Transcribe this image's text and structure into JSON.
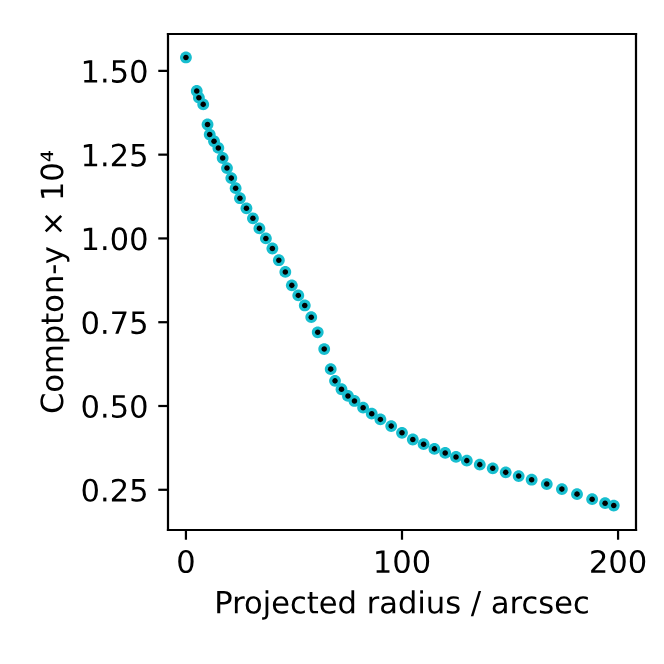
{
  "chart_data": {
    "type": "scatter",
    "xlabel": "Projected radius / arcsec",
    "ylabel": "Compton-y × 10⁴",
    "x": [
      0,
      5,
      6,
      8,
      10,
      11,
      13,
      15,
      17,
      19,
      21,
      23,
      25,
      28,
      31,
      34,
      37,
      40,
      43,
      46,
      49,
      52,
      55,
      58,
      61,
      64,
      67,
      69,
      72,
      75,
      78,
      82,
      86,
      90,
      95,
      100,
      105,
      110,
      115,
      120,
      125,
      130,
      136,
      142,
      148,
      154,
      160,
      167,
      174,
      181,
      188,
      194,
      198
    ],
    "series": [
      {
        "color": "#17becf",
        "marker": "circle",
        "values": [
          1.54,
          1.44,
          1.42,
          1.4,
          1.34,
          1.31,
          1.29,
          1.27,
          1.24,
          1.21,
          1.18,
          1.15,
          1.12,
          1.09,
          1.06,
          1.03,
          1.0,
          0.97,
          0.935,
          0.9,
          0.86,
          0.83,
          0.8,
          0.765,
          0.72,
          0.67,
          0.61,
          0.575,
          0.55,
          0.53,
          0.515,
          0.495,
          0.477,
          0.46,
          0.44,
          0.42,
          0.4,
          0.386,
          0.372,
          0.36,
          0.348,
          0.337,
          0.325,
          0.314,
          0.302,
          0.291,
          0.28,
          0.267,
          0.252,
          0.237,
          0.222,
          0.21,
          0.203
        ]
      },
      {
        "color": "#000000",
        "marker": "circle",
        "values": [
          1.54,
          1.44,
          1.42,
          1.4,
          1.34,
          1.31,
          1.29,
          1.27,
          1.24,
          1.21,
          1.18,
          1.15,
          1.12,
          1.09,
          1.06,
          1.03,
          1.0,
          0.97,
          0.935,
          0.9,
          0.86,
          0.83,
          0.8,
          0.765,
          0.72,
          0.67,
          0.61,
          0.575,
          0.55,
          0.53,
          0.515,
          0.495,
          0.477,
          0.46,
          0.44,
          0.42,
          0.4,
          0.386,
          0.372,
          0.36,
          0.348,
          0.337,
          0.325,
          0.314,
          0.302,
          0.291,
          0.28,
          0.267,
          0.252,
          0.237,
          0.222,
          0.21,
          0.203
        ]
      }
    ],
    "xlim": [
      -8.3,
      208.3
    ],
    "xticks": [
      0,
      100,
      200
    ],
    "ylim": [
      0.13,
      1.61
    ],
    "yticks": [
      {
        "value": 0.25,
        "label": "0.25"
      },
      {
        "value": 0.5,
        "label": "0.50"
      },
      {
        "value": 0.75,
        "label": "0.75"
      },
      {
        "value": 1.0,
        "label": "1.00"
      },
      {
        "value": 1.25,
        "label": "1.25"
      },
      {
        "value": 1.5,
        "label": "1.50"
      }
    ],
    "grid": false
  }
}
